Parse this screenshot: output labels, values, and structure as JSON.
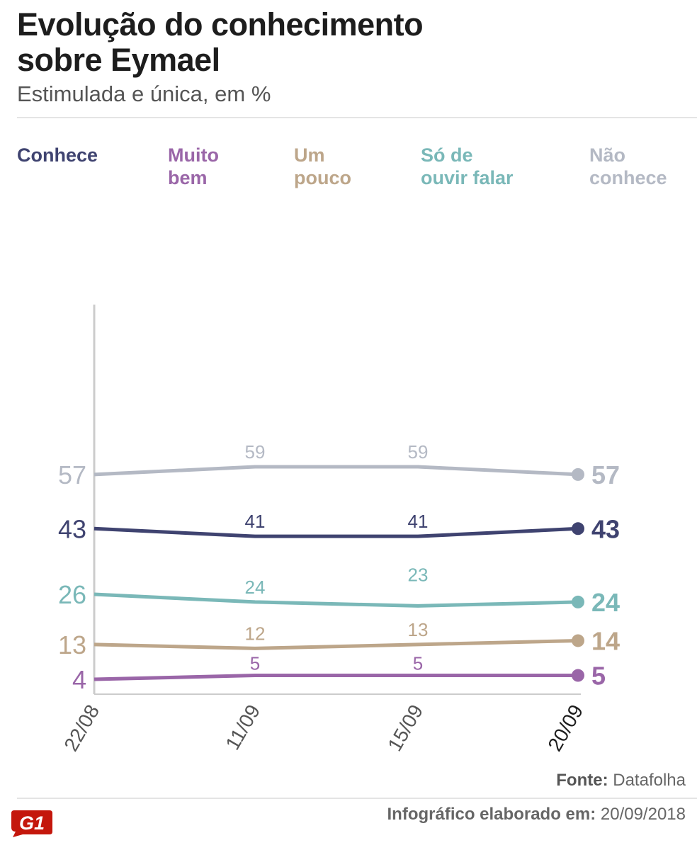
{
  "title_line1": "Evolução do conhecimento",
  "title_line2": "sobre Eymael",
  "subtitle": "Estimulada e única, em %",
  "footer": {
    "source_label": "Fonte:",
    "source_value": "Datafolha",
    "made_label": "Infográfico elaborado em:",
    "made_value": "20/09/2018",
    "logo_text": "G1"
  },
  "colors": {
    "conhece": "#3f4370",
    "muito_bem": "#9a66a8",
    "um_pouco": "#bda68a",
    "so_ouvir": "#7ab8b8",
    "nao_conhece": "#b4b9c4",
    "axis": "#cccccc",
    "logo": "#c4170c"
  },
  "chart_data": {
    "type": "line",
    "title": "Evolução do conhecimento sobre Eymael",
    "subtitle": "Estimulada e única, em %",
    "categories": [
      "22/08",
      "11/09",
      "15/09",
      "20/09"
    ],
    "ylim": [
      4,
      59
    ],
    "xlabel": "",
    "ylabel": "",
    "series": [
      {
        "key": "nao_conhece",
        "name": "Não conhece",
        "legend_line1": "Não",
        "legend_line2": "conhece",
        "values": [
          57,
          59,
          59,
          57
        ]
      },
      {
        "key": "conhece",
        "name": "Conhece",
        "legend_line1": "Conhece",
        "legend_line2": "",
        "values": [
          43,
          41,
          41,
          43
        ]
      },
      {
        "key": "so_ouvir",
        "name": "Só de ouvir falar",
        "legend_line1": "Só de",
        "legend_line2": "ouvir falar",
        "values": [
          26,
          24,
          23,
          24
        ]
      },
      {
        "key": "um_pouco",
        "name": "Um pouco",
        "legend_line1": "Um",
        "legend_line2": "pouco",
        "values": [
          13,
          12,
          13,
          14
        ]
      },
      {
        "key": "muito_bem",
        "name": "Muito bem",
        "legend_line1": "Muito",
        "legend_line2": "bem",
        "values": [
          4,
          5,
          5,
          5
        ]
      }
    ],
    "legend_order": [
      "conhece",
      "muito_bem",
      "um_pouco",
      "so_ouvir",
      "nao_conhece"
    ]
  }
}
